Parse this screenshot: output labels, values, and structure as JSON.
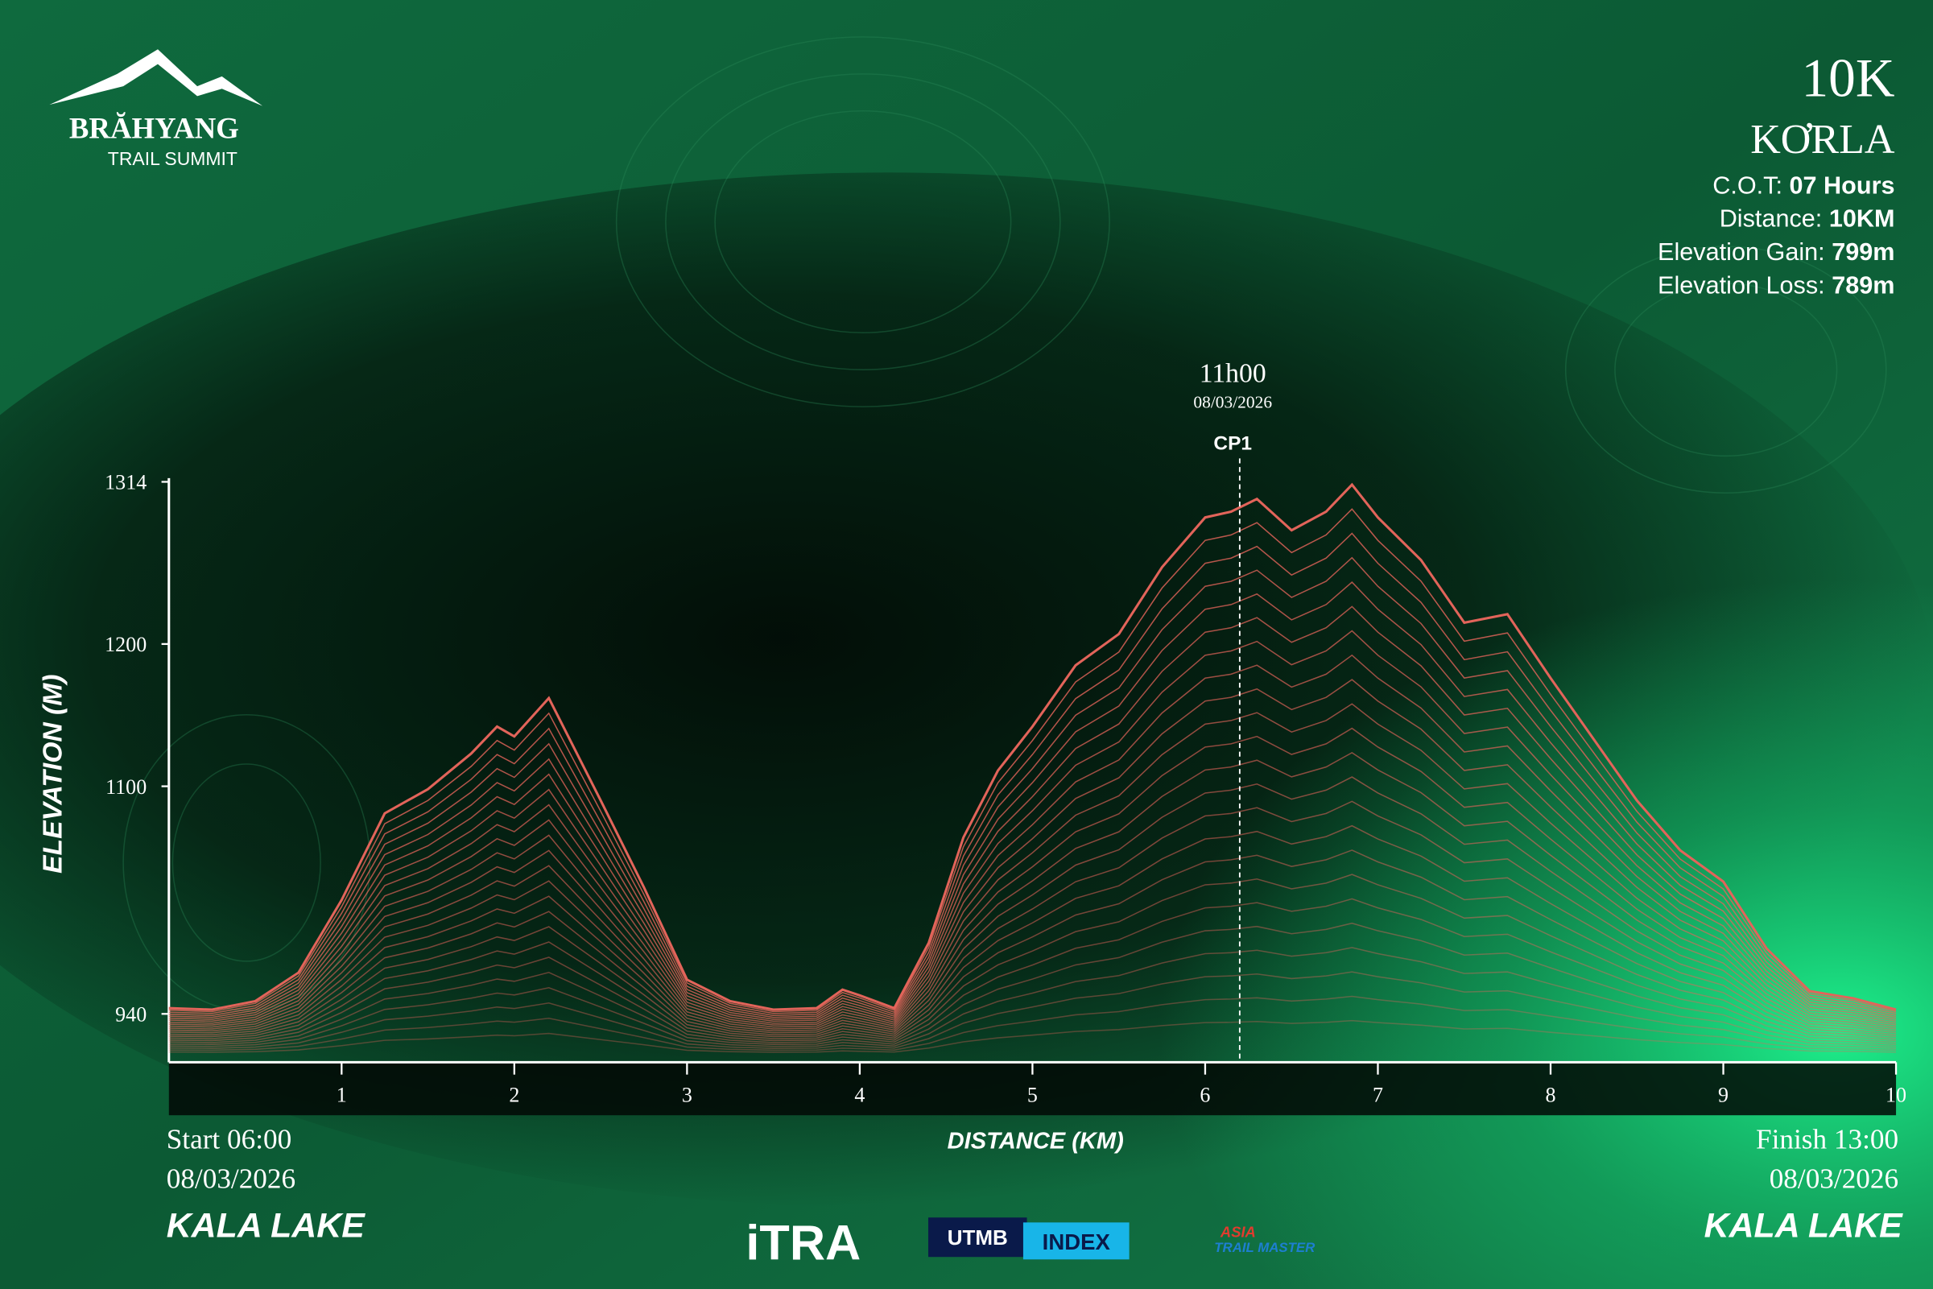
{
  "logo": {
    "name": "BRĂHYANG",
    "subtitle": "TRAIL SUMMIT"
  },
  "race": {
    "distance": "10K",
    "name": "KƠRLA",
    "stats": [
      {
        "label": "C.O.T:",
        "value": "07 Hours"
      },
      {
        "label": "Distance:",
        "value": "10KM"
      },
      {
        "label": "Elevation Gain:",
        "value": "799m"
      },
      {
        "label": "Elevation Loss:",
        "value": "789m"
      }
    ]
  },
  "chart_data": {
    "type": "line",
    "xlabel": "DISTANCE (KM)",
    "ylabel": "ELEVATION (M)",
    "color": "#e2645a",
    "x": [
      0,
      0.25,
      0.5,
      0.75,
      1,
      1.25,
      1.5,
      1.75,
      1.9,
      2,
      2.2,
      2.5,
      2.75,
      3,
      3.25,
      3.5,
      3.75,
      3.9,
      4,
      4.2,
      4.4,
      4.6,
      4.8,
      5,
      5.25,
      5.5,
      5.75,
      6,
      6.15,
      6.3,
      6.5,
      6.7,
      6.85,
      7,
      7.25,
      7.5,
      7.75,
      8,
      8.25,
      8.5,
      8.75,
      9,
      9.25,
      9.5,
      9.75,
      10
    ],
    "values": [
      944,
      943,
      949,
      969,
      1020,
      1081,
      1098,
      1123,
      1142,
      1135,
      1162,
      1090,
      1029,
      964,
      949,
      943,
      944,
      957,
      953,
      944,
      990,
      1064,
      1111,
      1142,
      1185,
      1207,
      1254,
      1289,
      1293,
      1302,
      1280,
      1293,
      1312,
      1289,
      1259,
      1215,
      1221,
      1176,
      1133,
      1090,
      1055,
      1033,
      986,
      956,
      951,
      943
    ],
    "xlim": [
      0,
      10
    ],
    "ylim": [
      906,
      1314
    ],
    "xticks": [
      1,
      2,
      3,
      4,
      5,
      6,
      7,
      8,
      9,
      10
    ],
    "yticks": [
      940,
      1100,
      1200,
      1314
    ],
    "checkpoint": {
      "x": 6.2,
      "time": "11h00",
      "date": "08/03/2026",
      "label": "CP1"
    }
  },
  "start": {
    "time": "Start 06:00",
    "date": "08/03/2026",
    "location": "KALA LAKE"
  },
  "finish": {
    "time": "Finish 13:00",
    "date": "08/03/2026",
    "location": "KALA LAKE"
  },
  "partners": {
    "itra": "iTRA",
    "utmb": "UTMB",
    "index": "INDEX",
    "asia": "ASIA",
    "atm": "TRAIL MASTER"
  }
}
